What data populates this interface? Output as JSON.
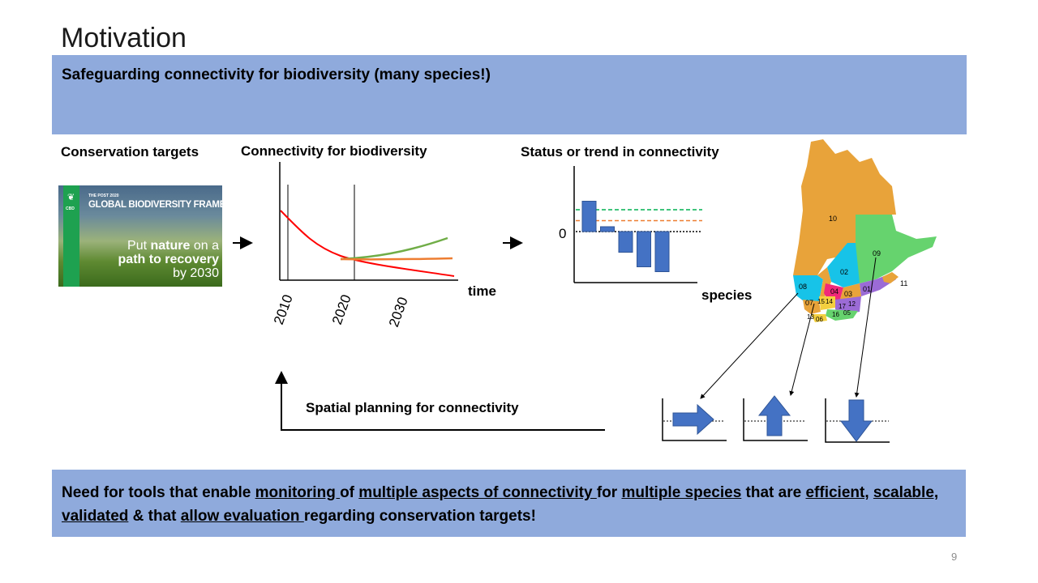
{
  "slide": {
    "title": "Motivation",
    "page_number": "9"
  },
  "top_box": {
    "text": "Safeguarding connectivity for biodiversity (many species!)"
  },
  "labels": {
    "conservation_targets": "Conservation  targets",
    "connectivity": "Connectivity  for biodiversity",
    "status_trend": "Status or trend in connectivity",
    "time": "time",
    "species": "species",
    "zero": "0",
    "spatial_planning": "Spatial  planning  for connectivity"
  },
  "gbf_banner": {
    "small_text": "THE POST 2020",
    "title": "GLOBAL BIODIVERSITY FRAMEWORK",
    "cbd": "CBD",
    "tag_line1_pre": "Put ",
    "tag_line1_bold": "nature",
    "tag_line1_post": " on a",
    "tag_line2": "path to recovery",
    "tag_line3": "by 2030"
  },
  "bottom_box": {
    "p1": "Need for tools that enable ",
    "u1": "monitoring ",
    "p2": "of ",
    "u2": "multiple aspects of connectivity ",
    "p3": "for ",
    "u3": "multiple species",
    "p4": " that are ",
    "u4": "efficient,",
    "p5": " ",
    "u5": "scalable, validated",
    "p6": " & that ",
    "u6": "allow evaluation ",
    "p7": "regarding conservation targets!"
  },
  "chart_data": [
    {
      "type": "line",
      "title": "Connectivity  for biodiversity",
      "xlabel": "time",
      "x_tick_labels": [
        "2010",
        "2020",
        "2030"
      ],
      "series": [
        {
          "color": "#ff0000"
        },
        {
          "color": "#70ad47"
        },
        {
          "color": "#ed7d31"
        }
      ]
    },
    {
      "type": "bar",
      "title": "Status or trend in connectivity",
      "xlabel": "species",
      "y_tick_labels": [
        "0"
      ],
      "values": [
        2.5,
        0.4,
        -1.7,
        -2.9,
        -3.3
      ],
      "reference_lines": [
        {
          "color": "#00b050",
          "style": "dashed",
          "value": 1.8
        },
        {
          "color": "#ed7d31",
          "style": "dashed",
          "value": 0.9
        },
        {
          "color": "#000000",
          "style": "dotted",
          "value": 0
        }
      ],
      "bar_color": "#4472c4"
    }
  ],
  "map": {
    "region_labels": [
      "10",
      "09",
      "02",
      "11",
      "08",
      "04",
      "03",
      "01",
      "07",
      "15",
      "14",
      "17",
      "12",
      "13",
      "06",
      "16",
      "05"
    ],
    "colors": {
      "orange": "#e8a33a",
      "green": "#66d36e",
      "cyan": "#17c3e8",
      "magenta": "#f0297a",
      "purple": "#9b6bd6",
      "yellow": "#f4d03f",
      "land": "#e6e6e6"
    }
  },
  "trend_icons": [
    {
      "direction": "right",
      "icon": "right-arrow-icon"
    },
    {
      "direction": "up",
      "icon": "up-arrow-icon"
    },
    {
      "direction": "down",
      "icon": "down-arrow-icon"
    }
  ]
}
